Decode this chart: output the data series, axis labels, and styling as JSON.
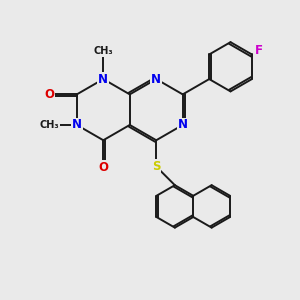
{
  "bg_color": "#eaeaea",
  "bond_color": "#1a1a1a",
  "n_color": "#0000ee",
  "o_color": "#dd0000",
  "s_color": "#cccc00",
  "f_color": "#cc00cc",
  "lw": 1.4,
  "doff": 0.045,
  "xlim": [
    -0.5,
    6.5
  ],
  "ylim": [
    0.2,
    6.8
  ]
}
